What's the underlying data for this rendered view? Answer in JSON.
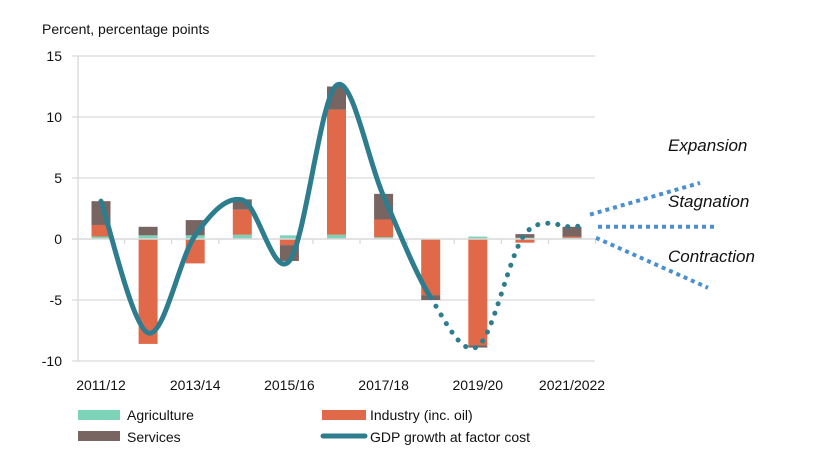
{
  "chart_data": {
    "type": "bar",
    "stacked": true,
    "title": "",
    "ylabel": "Percent, percentage points",
    "xlabel": "",
    "ylim": [
      -10,
      15
    ],
    "yticks": [
      15,
      10,
      5,
      0,
      -5,
      -10
    ],
    "grid": true,
    "categories": [
      "2011/12",
      "2012/13",
      "2013/14",
      "2014/15",
      "2015/16",
      "2016/17",
      "2017/18",
      "2018/19",
      "2019/20",
      "2020/21",
      "2021/2022"
    ],
    "xtick_labels": [
      "2011/12",
      "2013/14",
      "2015/16",
      "2017/18",
      "2019/20",
      "2021/2022"
    ],
    "series": [
      {
        "name": "Agriculture",
        "kind": "bar",
        "color": "#7dd3b8",
        "values": [
          0.2,
          0.3,
          0.3,
          0.35,
          0.3,
          0.35,
          0.15,
          0.0,
          0.2,
          0.1,
          0.1
        ]
      },
      {
        "name": "Industry (inc. oil)",
        "kind": "bar",
        "color": "#e0694a",
        "values": [
          0.95,
          -8.6,
          -2.0,
          2.05,
          -0.5,
          10.25,
          1.45,
          -4.6,
          -8.7,
          -0.3,
          0.1
        ]
      },
      {
        "name": "Services",
        "kind": "bar",
        "color": "#786461",
        "values": [
          1.95,
          0.7,
          1.25,
          0.85,
          -1.3,
          1.9,
          2.1,
          -0.4,
          -0.2,
          0.3,
          0.8
        ]
      },
      {
        "name": "GDP growth at factor cost",
        "kind": "line",
        "color": "#2e7d8e",
        "values": [
          3.1,
          -7.7,
          0.3,
          3.2,
          -1.8,
          12.6,
          3.5,
          -4.8,
          -8.8,
          0.4,
          1.0
        ],
        "solid_until_index": 7
      }
    ],
    "scenarios": [
      {
        "name": "Expansion",
        "end_value": 4.6
      },
      {
        "name": "Stagnation",
        "end_value": 1.0
      },
      {
        "name": "Contraction",
        "end_value": -4.0
      }
    ],
    "scenario_color": "#4a90d0",
    "legend": {
      "placement": "bottom",
      "items": [
        "Agriculture",
        "Industry (inc. oil)",
        "Services",
        "GDP growth at factor cost"
      ]
    }
  }
}
